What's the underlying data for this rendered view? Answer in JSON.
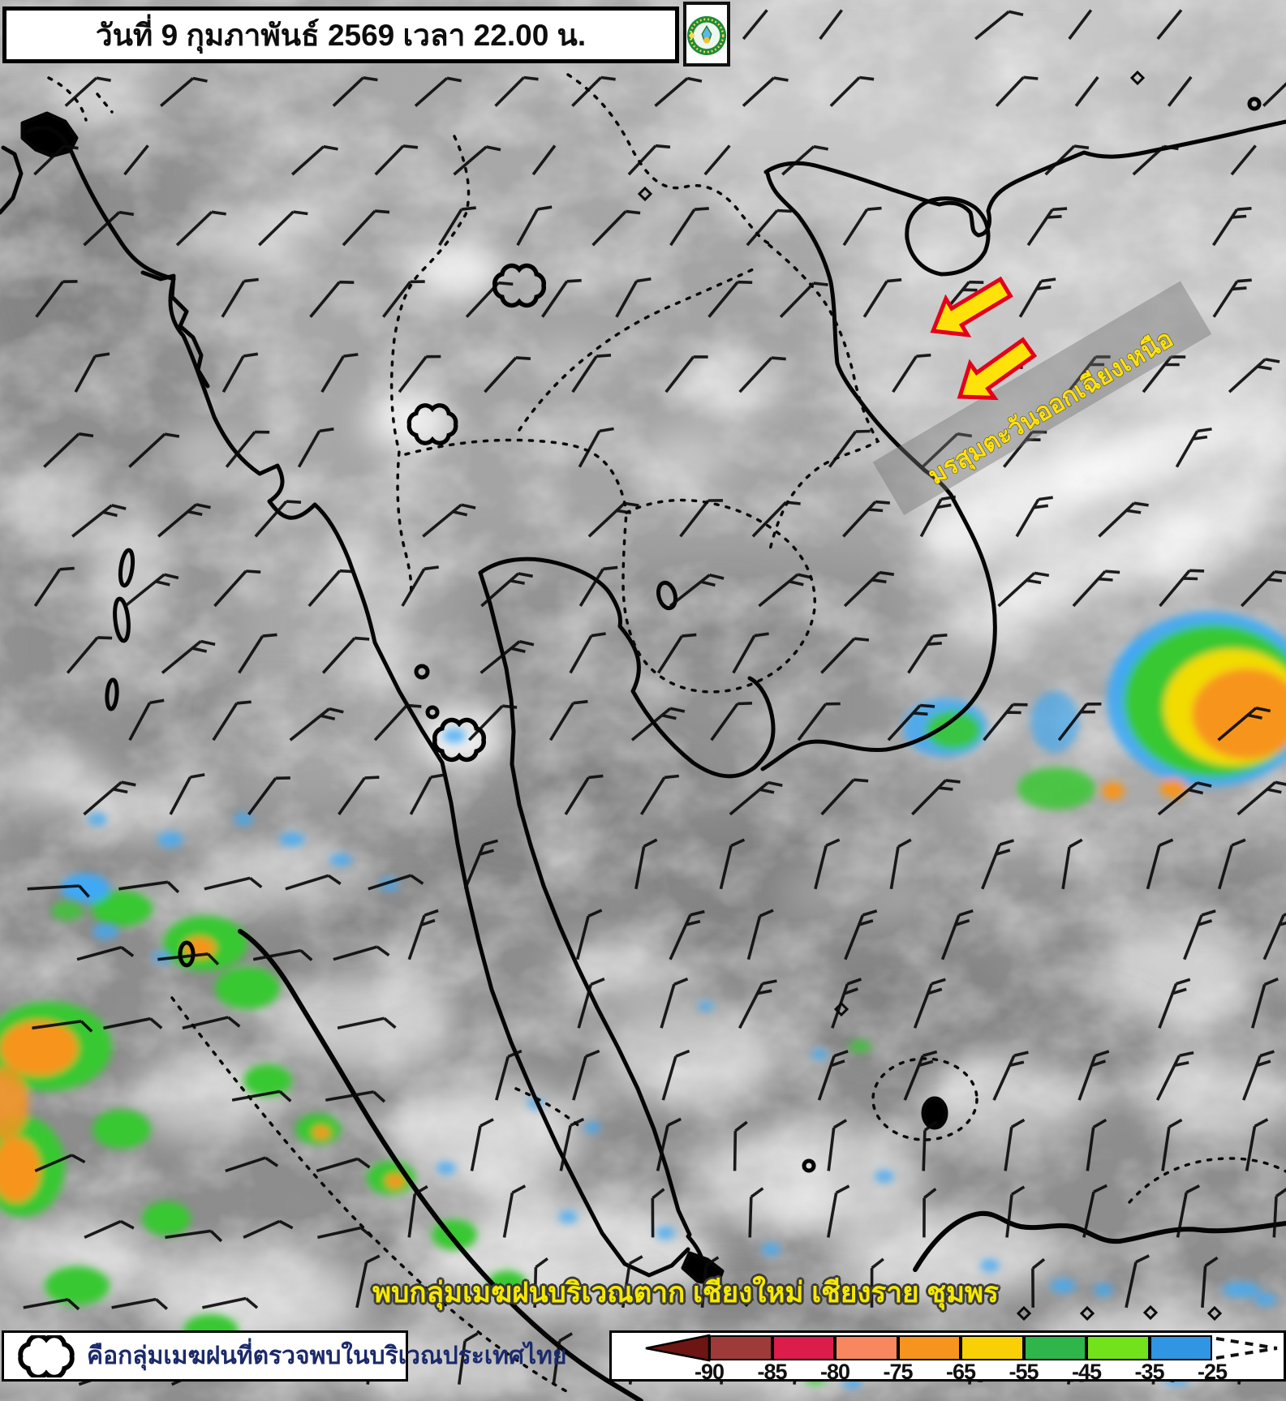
{
  "header": {
    "date_banner": "วันที่ 9 กุมภาพันธ์ 2569 เวลา 22.00 น.",
    "logo": "thai-meteorological-department-emblem"
  },
  "map": {
    "monsoon_annotation": "มรสุมตะวันออกเฉียงเหนือ",
    "monsoon_arrow_fill": "#FFE20A",
    "monsoon_arrow_outline": "#E3001B",
    "status_text": "พบกลุ่มเมฆฝนบริเวณตาก เชียงใหม่ เชียงราย ชุมพร",
    "status_text_color": "#F5E903",
    "cloud_marker_icon": "cloud-outline-icon",
    "cloud_marker_count": 3,
    "station_marker_icon": "diamond-icon",
    "wind_symbol_icon": "wind-barb-icon"
  },
  "legend": {
    "icon": "cloud-outline-icon",
    "note": "คือกลุ่มเมฆฝนที่ตรวจพบในบริเวณประเทศไทย",
    "note_color": "#1B2A6B"
  },
  "colorbar": {
    "ticks": [
      "-90",
      "-85",
      "-80",
      "-75",
      "-65",
      "-55",
      "-45",
      "-35",
      "-25"
    ],
    "segment_colors": [
      "#9E3B38",
      "#DC1C4B",
      "#F8875F",
      "#F7941E",
      "#F9D005",
      "#2FB64B",
      "#72E31B",
      "#3096E3"
    ],
    "left_arrow_color": "#6D1512"
  }
}
